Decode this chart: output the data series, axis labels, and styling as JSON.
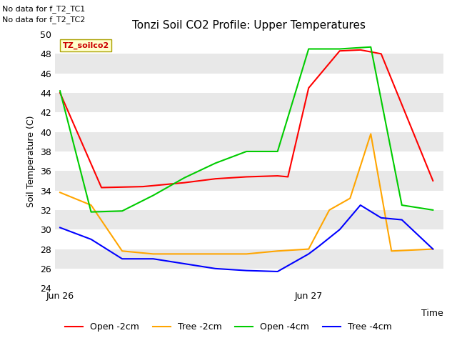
{
  "title": "Tonzi Soil CO2 Profile: Upper Temperatures",
  "xlabel": "Time",
  "ylabel": "Soil Temperature (C)",
  "ylim": [
    24,
    50
  ],
  "yticks": [
    24,
    26,
    28,
    30,
    32,
    34,
    36,
    38,
    40,
    42,
    44,
    46,
    48,
    50
  ],
  "note_line1": "No data for f_T2_TC1",
  "note_line2": "No data for f_T2_TC2",
  "watermark": "TZ_soilco2",
  "legend_entries": [
    "Open -2cm",
    "Tree -2cm",
    "Open -4cm",
    "Tree -4cm"
  ],
  "legend_colors": [
    "#ff0000",
    "#ffa500",
    "#00cc00",
    "#0000ff"
  ],
  "x_tick_labels": [
    "Jun 26",
    "Jun 27"
  ],
  "x_tick_positions": [
    0,
    24
  ],
  "open_2cm_x": [
    0,
    4,
    8,
    12,
    15,
    18,
    21,
    22,
    24,
    27,
    29,
    31,
    36
  ],
  "open_2cm_y": [
    44.0,
    34.3,
    34.4,
    34.8,
    35.2,
    35.4,
    35.5,
    35.4,
    44.5,
    48.3,
    48.4,
    48.0,
    35.0
  ],
  "tree_2cm_x": [
    0,
    3,
    6,
    9,
    12,
    15,
    18,
    21,
    24,
    26,
    28,
    30,
    32,
    36
  ],
  "tree_2cm_y": [
    33.8,
    32.5,
    27.8,
    27.5,
    27.5,
    27.5,
    27.5,
    27.8,
    28.0,
    32.0,
    33.2,
    39.8,
    27.8,
    28.0
  ],
  "open_4cm_x": [
    0,
    3,
    6,
    9,
    12,
    15,
    18,
    21,
    24,
    27,
    30,
    33,
    36
  ],
  "open_4cm_y": [
    44.2,
    31.8,
    31.9,
    33.5,
    35.3,
    36.8,
    38.0,
    38.0,
    48.5,
    48.5,
    48.7,
    32.5,
    32.0
  ],
  "tree_4cm_x": [
    0,
    3,
    6,
    9,
    12,
    15,
    18,
    21,
    24,
    25,
    27,
    29,
    31,
    33,
    36
  ],
  "tree_4cm_y": [
    30.2,
    29.0,
    27.0,
    27.0,
    26.5,
    26.0,
    25.8,
    25.7,
    27.5,
    28.3,
    30.0,
    32.5,
    31.2,
    31.0,
    28.0
  ]
}
